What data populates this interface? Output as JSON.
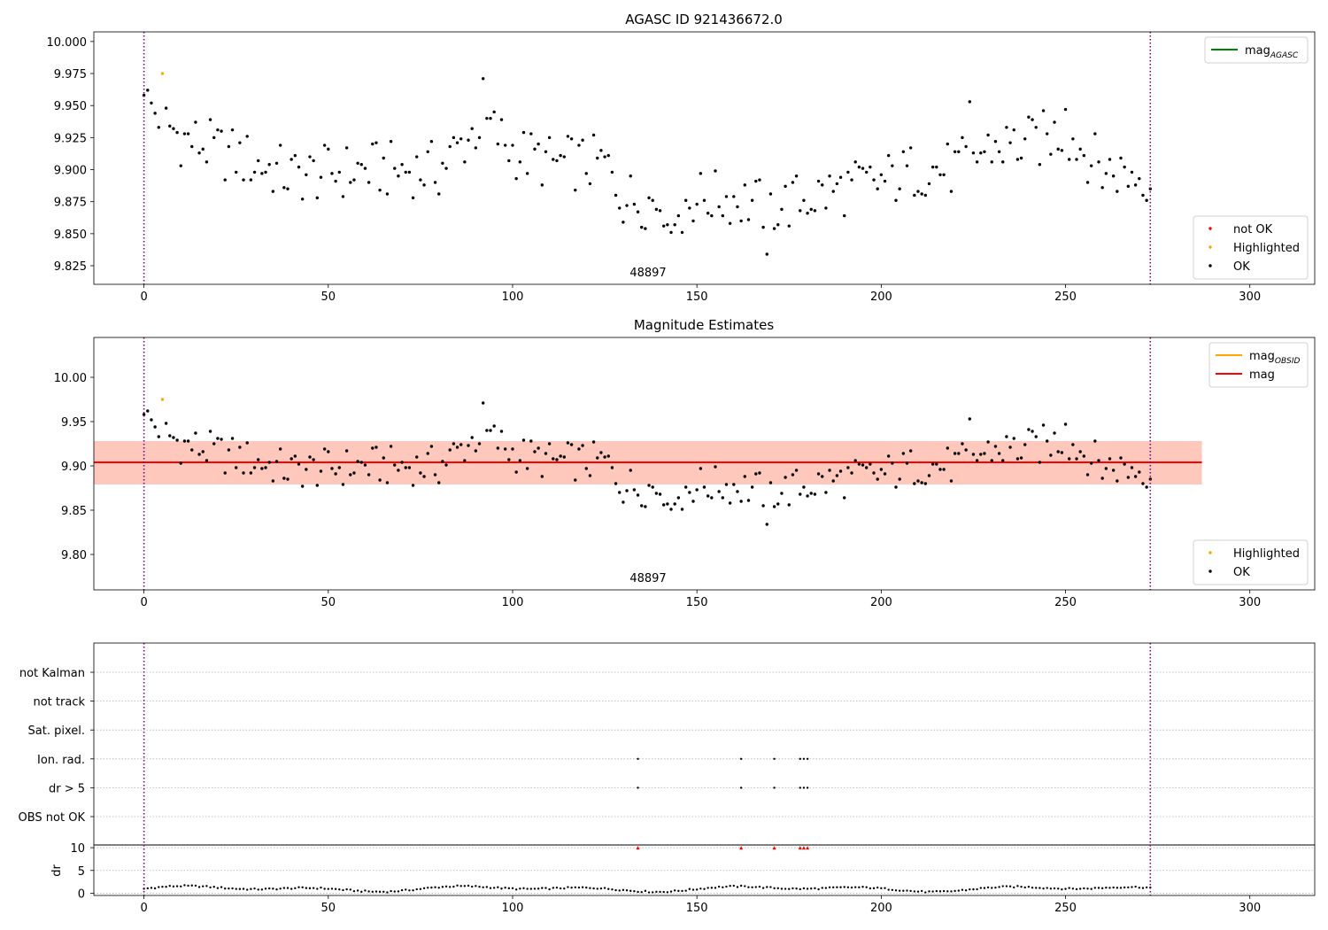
{
  "chart_data": [
    {
      "type": "scatter",
      "title": "AGASC ID 921436672.0",
      "annotation": "48897",
      "xlim": [
        -13.6,
        317.6
      ],
      "ylim": [
        9.8105,
        10.0075
      ],
      "xticks": [
        0,
        50,
        100,
        150,
        200,
        250,
        300
      ],
      "yticks": [
        9.825,
        9.85,
        9.875,
        9.9,
        9.925,
        9.95,
        9.975,
        10.0
      ],
      "ytick_labels": [
        "9.825",
        "9.850",
        "9.875",
        "9.900",
        "9.925",
        "9.950",
        "9.975",
        "10.000"
      ],
      "vlines": [
        0,
        273
      ],
      "legend_upper": [
        {
          "label": "mag",
          "sub": "AGASC",
          "color": "#008000",
          "kind": "line"
        }
      ],
      "legend_lower": [
        {
          "label": "not OK",
          "color": "#ff0000",
          "kind": "dot"
        },
        {
          "label": "Highlighted",
          "color": "#ffa500",
          "kind": "dot"
        },
        {
          "label": "OK",
          "color": "#000000",
          "kind": "dot"
        }
      ],
      "series": [
        {
          "name": "Highlighted",
          "color": "#ffa500",
          "x": [
            5
          ],
          "y": [
            9.975
          ]
        },
        {
          "name": "OK",
          "color": "#000000"
        }
      ]
    },
    {
      "type": "scatter",
      "title": "Magnitude Estimates",
      "annotation": "48897",
      "xlim": [
        -13.6,
        317.6
      ],
      "ylim": [
        9.76,
        10.045
      ],
      "xticks": [
        0,
        50,
        100,
        150,
        200,
        250,
        300
      ],
      "yticks": [
        9.8,
        9.85,
        9.9,
        9.95,
        10.0
      ],
      "ytick_labels": [
        "9.80",
        "9.85",
        "9.90",
        "9.95",
        "10.00"
      ],
      "vlines": [
        0,
        273
      ],
      "mag_line": 9.904,
      "bands": [
        {
          "y0": 9.879,
          "y1": 9.928,
          "x1": 287,
          "color": "#ffc0cb",
          "opacity": 0.45
        },
        {
          "y0": 9.879,
          "y1": 9.928,
          "x1": 287,
          "color": "#ffa07a",
          "opacity": 0.4
        }
      ],
      "legend_upper": [
        {
          "label": "mag",
          "sub": "OBSID",
          "color": "#ffa500",
          "kind": "line"
        },
        {
          "label": "mag",
          "sub": "",
          "color": "#ff0000",
          "kind": "line"
        }
      ],
      "legend_lower": [
        {
          "label": "Highlighted",
          "color": "#ffa500",
          "kind": "dot"
        },
        {
          "label": "OK",
          "color": "#000000",
          "kind": "dot"
        }
      ]
    },
    {
      "type": "scatter",
      "title": "",
      "xlim": [
        -13.6,
        317.6
      ],
      "xticks": [
        0,
        50,
        100,
        150,
        200,
        250,
        300
      ],
      "vlines": [
        0,
        273
      ],
      "flag_rows": [
        "not Kalman",
        "not track",
        "Sat. pixel.",
        "Ion. rad.",
        "dr > 5",
        "OBS not OK"
      ],
      "flags": [
        {
          "row": "Ion. rad.",
          "x": [
            134,
            162,
            171,
            178,
            179,
            180
          ]
        },
        {
          "row": "dr > 5",
          "x": [
            134,
            162,
            171,
            178,
            179,
            180
          ]
        }
      ],
      "dr": {
        "ylabel": "dr",
        "yticks": [
          0,
          5,
          10
        ],
        "ylim": [
          -0.5,
          10.6
        ],
        "clipped_value": 10,
        "clipped_color": "#ff0000",
        "clipped_x": [
          134,
          162,
          171,
          178,
          179,
          180
        ]
      }
    }
  ]
}
